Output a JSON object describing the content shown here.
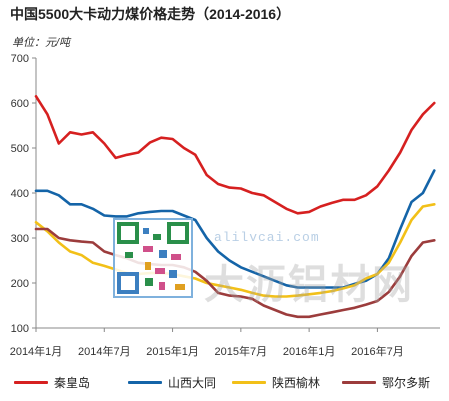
{
  "title": "中国5500大卡动力煤价格走势（2014-2016）",
  "unit_label": "单位：元/吨",
  "watermark": {
    "url": "alilvcai.com",
    "brand": "大沥铝材网"
  },
  "colors": {
    "qinhuangdao": "#d62020",
    "shanxi_datong": "#1464a8",
    "shaanxi_yulin": "#f2c018",
    "ordos": "#9c3c3c",
    "axis": "#888888"
  },
  "chart_data": {
    "type": "line",
    "title": "中国5500大卡动力煤价格走势（2014-2016）",
    "ylabel": "单位：元/吨",
    "xlabel": "",
    "ylim": [
      100,
      700
    ],
    "yticks": [
      100,
      200,
      300,
      400,
      500,
      600,
      700
    ],
    "xlim": [
      "2014-01",
      "2016-12"
    ],
    "xticks": [
      "2014年1月",
      "2014年7月",
      "2015年1月",
      "2015年7月",
      "2016年1月",
      "2016年7月"
    ],
    "grid": false,
    "legend_position": "bottom",
    "series": [
      {
        "name": "秦皇岛",
        "color_key": "qinhuangdao",
        "points": [
          [
            "2014-01",
            615
          ],
          [
            "2014-02",
            575
          ],
          [
            "2014-03",
            510
          ],
          [
            "2014-04",
            535
          ],
          [
            "2014-05",
            530
          ],
          [
            "2014-06",
            535
          ],
          [
            "2014-07",
            510
          ],
          [
            "2014-08",
            478
          ],
          [
            "2014-09",
            485
          ],
          [
            "2014-10",
            490
          ],
          [
            "2014-11",
            512
          ],
          [
            "2014-12",
            523
          ],
          [
            "2015-01",
            520
          ],
          [
            "2015-02",
            500
          ],
          [
            "2015-03",
            485
          ],
          [
            "2015-04",
            440
          ],
          [
            "2015-05",
            420
          ],
          [
            "2015-06",
            412
          ],
          [
            "2015-07",
            410
          ],
          [
            "2015-08",
            400
          ],
          [
            "2015-09",
            395
          ],
          [
            "2015-10",
            380
          ],
          [
            "2015-11",
            365
          ],
          [
            "2015-12",
            355
          ],
          [
            "2016-01",
            358
          ],
          [
            "2016-02",
            370
          ],
          [
            "2016-03",
            378
          ],
          [
            "2016-04",
            385
          ],
          [
            "2016-05",
            385
          ],
          [
            "2016-06",
            395
          ],
          [
            "2016-07",
            415
          ],
          [
            "2016-08",
            450
          ],
          [
            "2016-09",
            490
          ],
          [
            "2016-10",
            540
          ],
          [
            "2016-11",
            575
          ],
          [
            "2016-12",
            600
          ]
        ]
      },
      {
        "name": "山西大同",
        "color_key": "shanxi_datong",
        "points": [
          [
            "2014-01",
            405
          ],
          [
            "2014-02",
            405
          ],
          [
            "2014-03",
            395
          ],
          [
            "2014-04",
            375
          ],
          [
            "2014-05",
            375
          ],
          [
            "2014-06",
            365
          ],
          [
            "2014-07",
            350
          ],
          [
            "2014-08",
            348
          ],
          [
            "2014-09",
            348
          ],
          [
            "2014-10",
            355
          ],
          [
            "2014-11",
            358
          ],
          [
            "2014-12",
            360
          ],
          [
            "2015-01",
            360
          ],
          [
            "2015-02",
            350
          ],
          [
            "2015-03",
            340
          ],
          [
            "2015-04",
            300
          ],
          [
            "2015-05",
            270
          ],
          [
            "2015-06",
            250
          ],
          [
            "2015-07",
            235
          ],
          [
            "2015-08",
            225
          ],
          [
            "2015-09",
            215
          ],
          [
            "2015-10",
            205
          ],
          [
            "2015-11",
            195
          ],
          [
            "2015-12",
            190
          ],
          [
            "2016-01",
            190
          ],
          [
            "2016-02",
            190
          ],
          [
            "2016-03",
            190
          ],
          [
            "2016-04",
            190
          ],
          [
            "2016-05",
            198
          ],
          [
            "2016-06",
            205
          ],
          [
            "2016-07",
            220
          ],
          [
            "2016-08",
            255
          ],
          [
            "2016-09",
            320
          ],
          [
            "2016-10",
            380
          ],
          [
            "2016-11",
            400
          ],
          [
            "2016-12",
            450
          ]
        ]
      },
      {
        "name": "陕西榆林",
        "color_key": "shaanxi_yulin",
        "points": [
          [
            "2014-01",
            335
          ],
          [
            "2014-02",
            315
          ],
          [
            "2014-03",
            290
          ],
          [
            "2014-04",
            270
          ],
          [
            "2014-05",
            262
          ],
          [
            "2014-06",
            245
          ],
          [
            "2014-07",
            238
          ],
          [
            "2014-08",
            230
          ],
          [
            "2014-09",
            222
          ],
          [
            "2014-10",
            220
          ],
          [
            "2014-11",
            222
          ],
          [
            "2014-12",
            222
          ],
          [
            "2015-01",
            220
          ],
          [
            "2015-02",
            215
          ],
          [
            "2015-03",
            210
          ],
          [
            "2015-04",
            200
          ],
          [
            "2015-05",
            195
          ],
          [
            "2015-06",
            190
          ],
          [
            "2015-07",
            185
          ],
          [
            "2015-08",
            178
          ],
          [
            "2015-09",
            172
          ],
          [
            "2015-10",
            170
          ],
          [
            "2015-11",
            170
          ],
          [
            "2015-12",
            172
          ],
          [
            "2016-01",
            175
          ],
          [
            "2016-02",
            178
          ],
          [
            "2016-03",
            182
          ],
          [
            "2016-04",
            188
          ],
          [
            "2016-05",
            195
          ],
          [
            "2016-06",
            210
          ],
          [
            "2016-07",
            220
          ],
          [
            "2016-08",
            245
          ],
          [
            "2016-09",
            290
          ],
          [
            "2016-10",
            340
          ],
          [
            "2016-11",
            370
          ],
          [
            "2016-12",
            375
          ]
        ]
      },
      {
        "name": "鄂尔多斯",
        "color_key": "ordos",
        "points": [
          [
            "2014-01",
            320
          ],
          [
            "2014-02",
            320
          ],
          [
            "2014-03",
            300
          ],
          [
            "2014-04",
            295
          ],
          [
            "2014-05",
            292
          ],
          [
            "2014-06",
            290
          ],
          [
            "2014-07",
            270
          ],
          [
            "2014-08",
            262
          ],
          [
            "2014-09",
            255
          ],
          [
            "2014-10",
            245
          ],
          [
            "2014-11",
            242
          ],
          [
            "2014-12",
            240
          ],
          [
            "2015-01",
            240
          ],
          [
            "2015-02",
            235
          ],
          [
            "2015-03",
            225
          ],
          [
            "2015-04",
            205
          ],
          [
            "2015-05",
            178
          ],
          [
            "2015-06",
            172
          ],
          [
            "2015-07",
            170
          ],
          [
            "2015-08",
            165
          ],
          [
            "2015-09",
            150
          ],
          [
            "2015-10",
            140
          ],
          [
            "2015-11",
            130
          ],
          [
            "2015-12",
            125
          ],
          [
            "2016-01",
            125
          ],
          [
            "2016-02",
            130
          ],
          [
            "2016-03",
            135
          ],
          [
            "2016-04",
            140
          ],
          [
            "2016-05",
            145
          ],
          [
            "2016-06",
            152
          ],
          [
            "2016-07",
            160
          ],
          [
            "2016-08",
            180
          ],
          [
            "2016-09",
            215
          ],
          [
            "2016-10",
            260
          ],
          [
            "2016-11",
            290
          ],
          [
            "2016-12",
            295
          ]
        ]
      }
    ]
  }
}
